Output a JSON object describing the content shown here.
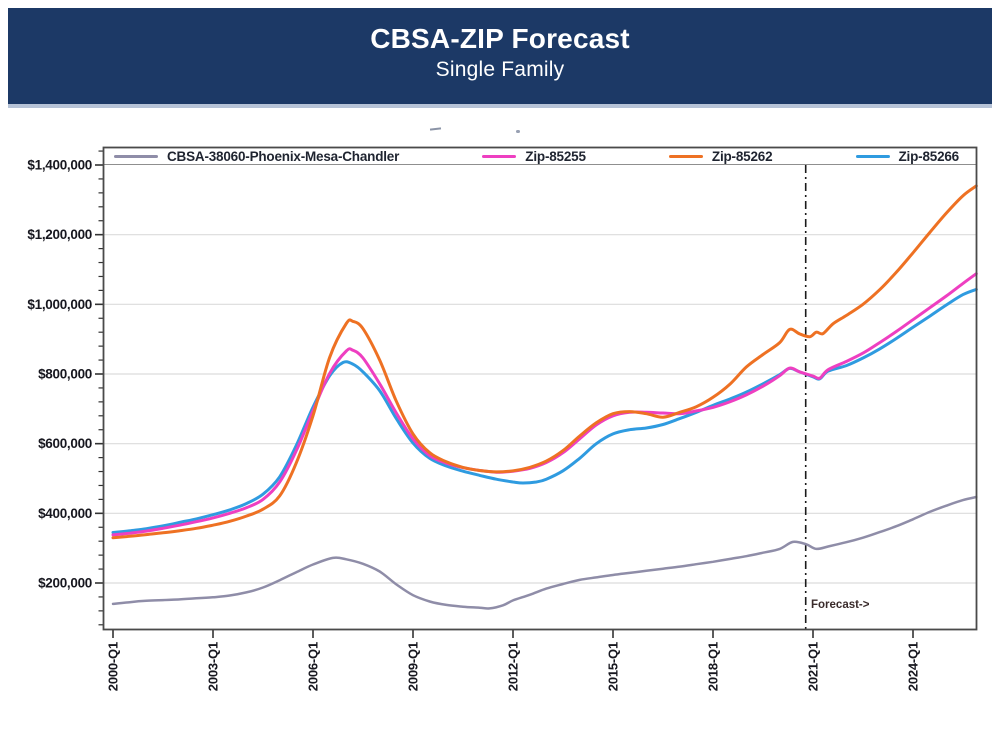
{
  "header": {
    "title": "CBSA-ZIP Forecast",
    "subtitle": "Single Family"
  },
  "colors": {
    "header_bg": "#1c3966",
    "header_underline": "#b6c3d7",
    "grid": "#dcdcdc",
    "axis_border": "#4a4a4a",
    "tick": "#333333",
    "legend_divider": "#8f8f8f",
    "forecast_line": "#1a1a1a",
    "forecast_text": "#3a2b2b"
  },
  "chart_data": {
    "type": "line",
    "title": "",
    "xlabel": "",
    "ylabel": "",
    "grid": "horizontal-on",
    "legend_position": "top",
    "x_axis": {
      "tick_labels": [
        "2000-Q1",
        "2003-Q1",
        "2006-Q1",
        "2009-Q1",
        "2012-Q1",
        "2015-Q1",
        "2018-Q1",
        "2021-Q1",
        "2024-Q1"
      ],
      "tick_years": [
        2000,
        2003,
        2006,
        2009,
        2012,
        2015,
        2018,
        2021,
        2024
      ],
      "range_years": [
        1999.7,
        2025.92
      ]
    },
    "y_axis": {
      "tick_labels": [
        "$1,400,000",
        "$1,200,000",
        "$1,000,000",
        "$800,000",
        "$600,000",
        "$400,000",
        "$200,000"
      ],
      "tick_values": [
        1400000,
        1200000,
        1000000,
        800000,
        600000,
        400000,
        200000
      ],
      "minor_tick_step": 40000,
      "visible_range": [
        65000,
        1452000
      ]
    },
    "forecast": {
      "label": "Forecast->",
      "x_year": 2020.78
    },
    "draw_order": [
      0,
      3,
      1,
      2
    ],
    "series": [
      {
        "name": "CBSA-38060-Phoenix-Mesa-Chandler",
        "color": "#8f8da8",
        "width": 2.5,
        "points": [
          [
            2000,
            140000
          ],
          [
            2000.5,
            145000
          ],
          [
            2001,
            149000
          ],
          [
            2001.5,
            151000
          ],
          [
            2002,
            153000
          ],
          [
            2002.5,
            156000
          ],
          [
            2003,
            159000
          ],
          [
            2003.5,
            164000
          ],
          [
            2004,
            173000
          ],
          [
            2004.5,
            187000
          ],
          [
            2005,
            208000
          ],
          [
            2005.5,
            231000
          ],
          [
            2006,
            253000
          ],
          [
            2006.6,
            272000
          ],
          [
            2007,
            268000
          ],
          [
            2007.5,
            255000
          ],
          [
            2008,
            233000
          ],
          [
            2008.5,
            196000
          ],
          [
            2009,
            165000
          ],
          [
            2009.5,
            147000
          ],
          [
            2010,
            137000
          ],
          [
            2010.5,
            132000
          ],
          [
            2011,
            129000
          ],
          [
            2011.3,
            127000
          ],
          [
            2011.7,
            136000
          ],
          [
            2012,
            150000
          ],
          [
            2012.5,
            166000
          ],
          [
            2013,
            184000
          ],
          [
            2013.5,
            197000
          ],
          [
            2014,
            209000
          ],
          [
            2014.5,
            216000
          ],
          [
            2015,
            223000
          ],
          [
            2015.5,
            229000
          ],
          [
            2016,
            235000
          ],
          [
            2016.5,
            241000
          ],
          [
            2017,
            247000
          ],
          [
            2017.5,
            254000
          ],
          [
            2018,
            261000
          ],
          [
            2018.5,
            269000
          ],
          [
            2019,
            277000
          ],
          [
            2019.5,
            287000
          ],
          [
            2020,
            298000
          ],
          [
            2020.4,
            318000
          ],
          [
            2020.8,
            311000
          ],
          [
            2021.1,
            298000
          ],
          [
            2021.5,
            306000
          ],
          [
            2022,
            317000
          ],
          [
            2022.5,
            330000
          ],
          [
            2023,
            346000
          ],
          [
            2023.5,
            363000
          ],
          [
            2024,
            383000
          ],
          [
            2024.5,
            404000
          ],
          [
            2025,
            422000
          ],
          [
            2025.5,
            438000
          ],
          [
            2025.9,
            447000
          ]
        ]
      },
      {
        "name": "Zip-85255",
        "color": "#ee3fc1",
        "width": 3,
        "points": [
          [
            2000,
            338000
          ],
          [
            2000.5,
            343000
          ],
          [
            2001,
            349000
          ],
          [
            2001.5,
            357000
          ],
          [
            2002,
            366000
          ],
          [
            2002.5,
            376000
          ],
          [
            2003,
            387000
          ],
          [
            2003.5,
            400000
          ],
          [
            2004,
            416000
          ],
          [
            2004.5,
            440000
          ],
          [
            2005,
            490000
          ],
          [
            2005.5,
            580000
          ],
          [
            2006,
            694000
          ],
          [
            2006.5,
            802000
          ],
          [
            2007,
            866000
          ],
          [
            2007.2,
            868000
          ],
          [
            2007.5,
            846000
          ],
          [
            2008,
            772000
          ],
          [
            2008.5,
            688000
          ],
          [
            2009,
            614000
          ],
          [
            2009.5,
            566000
          ],
          [
            2010,
            544000
          ],
          [
            2010.5,
            531000
          ],
          [
            2011,
            523000
          ],
          [
            2011.5,
            518000
          ],
          [
            2012,
            521000
          ],
          [
            2012.5,
            529000
          ],
          [
            2013,
            546000
          ],
          [
            2013.5,
            574000
          ],
          [
            2014,
            614000
          ],
          [
            2014.5,
            654000
          ],
          [
            2015,
            680000
          ],
          [
            2015.5,
            690000
          ],
          [
            2016,
            690000
          ],
          [
            2016.5,
            688000
          ],
          [
            2017,
            686000
          ],
          [
            2017.5,
            694000
          ],
          [
            2018,
            704000
          ],
          [
            2018.5,
            720000
          ],
          [
            2019,
            740000
          ],
          [
            2019.5,
            765000
          ],
          [
            2020,
            795000
          ],
          [
            2020.3,
            817000
          ],
          [
            2020.6,
            806000
          ],
          [
            2021,
            794000
          ],
          [
            2021.2,
            788000
          ],
          [
            2021.45,
            812000
          ],
          [
            2022,
            836000
          ],
          [
            2022.5,
            860000
          ],
          [
            2023,
            890000
          ],
          [
            2023.5,
            922000
          ],
          [
            2024,
            956000
          ],
          [
            2024.5,
            990000
          ],
          [
            2025,
            1024000
          ],
          [
            2025.5,
            1060000
          ],
          [
            2025.9,
            1088000
          ]
        ]
      },
      {
        "name": "Zip-85262",
        "color": "#ee7123",
        "width": 3,
        "points": [
          [
            2000,
            330000
          ],
          [
            2000.5,
            334000
          ],
          [
            2001,
            339000
          ],
          [
            2001.5,
            344000
          ],
          [
            2002,
            350000
          ],
          [
            2002.5,
            357000
          ],
          [
            2003,
            366000
          ],
          [
            2003.5,
            377000
          ],
          [
            2004,
            392000
          ],
          [
            2004.5,
            412000
          ],
          [
            2005,
            450000
          ],
          [
            2005.5,
            545000
          ],
          [
            2006,
            680000
          ],
          [
            2006.5,
            848000
          ],
          [
            2007,
            945000
          ],
          [
            2007.2,
            951000
          ],
          [
            2007.5,
            930000
          ],
          [
            2008,
            840000
          ],
          [
            2008.5,
            722000
          ],
          [
            2009,
            628000
          ],
          [
            2009.5,
            574000
          ],
          [
            2010,
            548000
          ],
          [
            2010.5,
            532000
          ],
          [
            2011,
            523000
          ],
          [
            2011.5,
            519000
          ],
          [
            2012,
            522000
          ],
          [
            2012.5,
            532000
          ],
          [
            2013,
            550000
          ],
          [
            2013.5,
            580000
          ],
          [
            2014,
            622000
          ],
          [
            2014.5,
            660000
          ],
          [
            2015,
            686000
          ],
          [
            2015.5,
            692000
          ],
          [
            2016,
            686000
          ],
          [
            2016.5,
            676000
          ],
          [
            2017,
            690000
          ],
          [
            2017.5,
            706000
          ],
          [
            2018,
            733000
          ],
          [
            2018.5,
            770000
          ],
          [
            2019,
            820000
          ],
          [
            2019.5,
            856000
          ],
          [
            2020,
            890000
          ],
          [
            2020.3,
            928000
          ],
          [
            2020.6,
            915000
          ],
          [
            2020.9,
            907000
          ],
          [
            2021.1,
            920000
          ],
          [
            2021.3,
            916000
          ],
          [
            2021.6,
            944000
          ],
          [
            2022,
            968000
          ],
          [
            2022.5,
            1000000
          ],
          [
            2023,
            1042000
          ],
          [
            2023.5,
            1092000
          ],
          [
            2024,
            1148000
          ],
          [
            2024.5,
            1206000
          ],
          [
            2025,
            1262000
          ],
          [
            2025.5,
            1312000
          ],
          [
            2025.9,
            1340000
          ]
        ]
      },
      {
        "name": "Zip-85266",
        "color": "#2f9be0",
        "width": 3,
        "points": [
          [
            2000,
            345000
          ],
          [
            2000.5,
            350000
          ],
          [
            2001,
            356000
          ],
          [
            2001.5,
            364000
          ],
          [
            2002,
            374000
          ],
          [
            2002.5,
            384000
          ],
          [
            2003,
            396000
          ],
          [
            2003.5,
            410000
          ],
          [
            2004,
            428000
          ],
          [
            2004.5,
            455000
          ],
          [
            2005,
            505000
          ],
          [
            2005.5,
            595000
          ],
          [
            2006,
            705000
          ],
          [
            2006.5,
            795000
          ],
          [
            2006.9,
            833000
          ],
          [
            2007.2,
            828000
          ],
          [
            2007.5,
            806000
          ],
          [
            2008,
            752000
          ],
          [
            2008.5,
            672000
          ],
          [
            2009,
            602000
          ],
          [
            2009.5,
            558000
          ],
          [
            2010,
            536000
          ],
          [
            2010.5,
            521000
          ],
          [
            2011,
            509000
          ],
          [
            2011.5,
            498000
          ],
          [
            2012,
            490000
          ],
          [
            2012.3,
            487000
          ],
          [
            2012.7,
            490000
          ],
          [
            2013,
            498000
          ],
          [
            2013.5,
            522000
          ],
          [
            2014,
            558000
          ],
          [
            2014.5,
            600000
          ],
          [
            2015,
            628000
          ],
          [
            2015.5,
            640000
          ],
          [
            2016,
            645000
          ],
          [
            2016.5,
            655000
          ],
          [
            2017,
            672000
          ],
          [
            2017.5,
            690000
          ],
          [
            2018,
            710000
          ],
          [
            2018.5,
            728000
          ],
          [
            2019,
            748000
          ],
          [
            2019.5,
            772000
          ],
          [
            2020,
            798000
          ],
          [
            2020.3,
            816000
          ],
          [
            2020.6,
            806000
          ],
          [
            2021,
            792000
          ],
          [
            2021.2,
            786000
          ],
          [
            2021.45,
            808000
          ],
          [
            2022,
            824000
          ],
          [
            2022.5,
            846000
          ],
          [
            2023,
            872000
          ],
          [
            2023.5,
            902000
          ],
          [
            2024,
            934000
          ],
          [
            2024.5,
            966000
          ],
          [
            2025,
            998000
          ],
          [
            2025.5,
            1028000
          ],
          [
            2025.9,
            1043000
          ]
        ]
      }
    ]
  }
}
